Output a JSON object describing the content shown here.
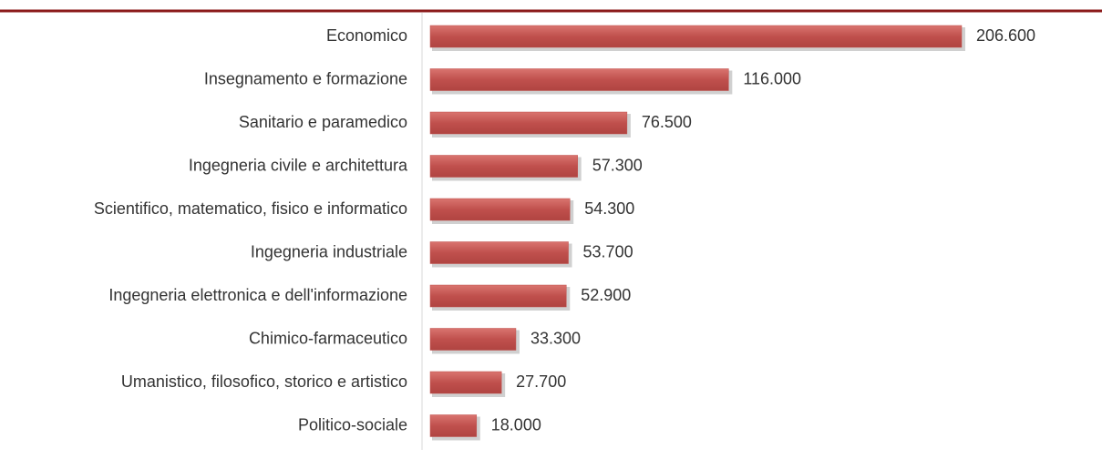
{
  "chart_data": {
    "type": "bar",
    "orientation": "horizontal",
    "categories": [
      "Economico",
      "Insegnamento e formazione",
      "Sanitario e paramedico",
      "Ingegneria civile e architettura",
      "Scientifico, matematico, fisico e informatico",
      "Ingegneria industriale",
      "Ingegneria elettronica e dell'informazione",
      "Chimico-farmaceutico",
      "Umanistico, filosofico, storico e artistico",
      "Politico-sociale"
    ],
    "values": [
      206600,
      116000,
      76500,
      57300,
      54300,
      53700,
      52900,
      33300,
      27700,
      18000
    ],
    "value_labels": [
      "206.600",
      "116.000",
      "76.500",
      "57.300",
      "54.300",
      "53.700",
      "52.900",
      "33.300",
      "27.700",
      "18.000"
    ],
    "color": "#c0504d"
  }
}
